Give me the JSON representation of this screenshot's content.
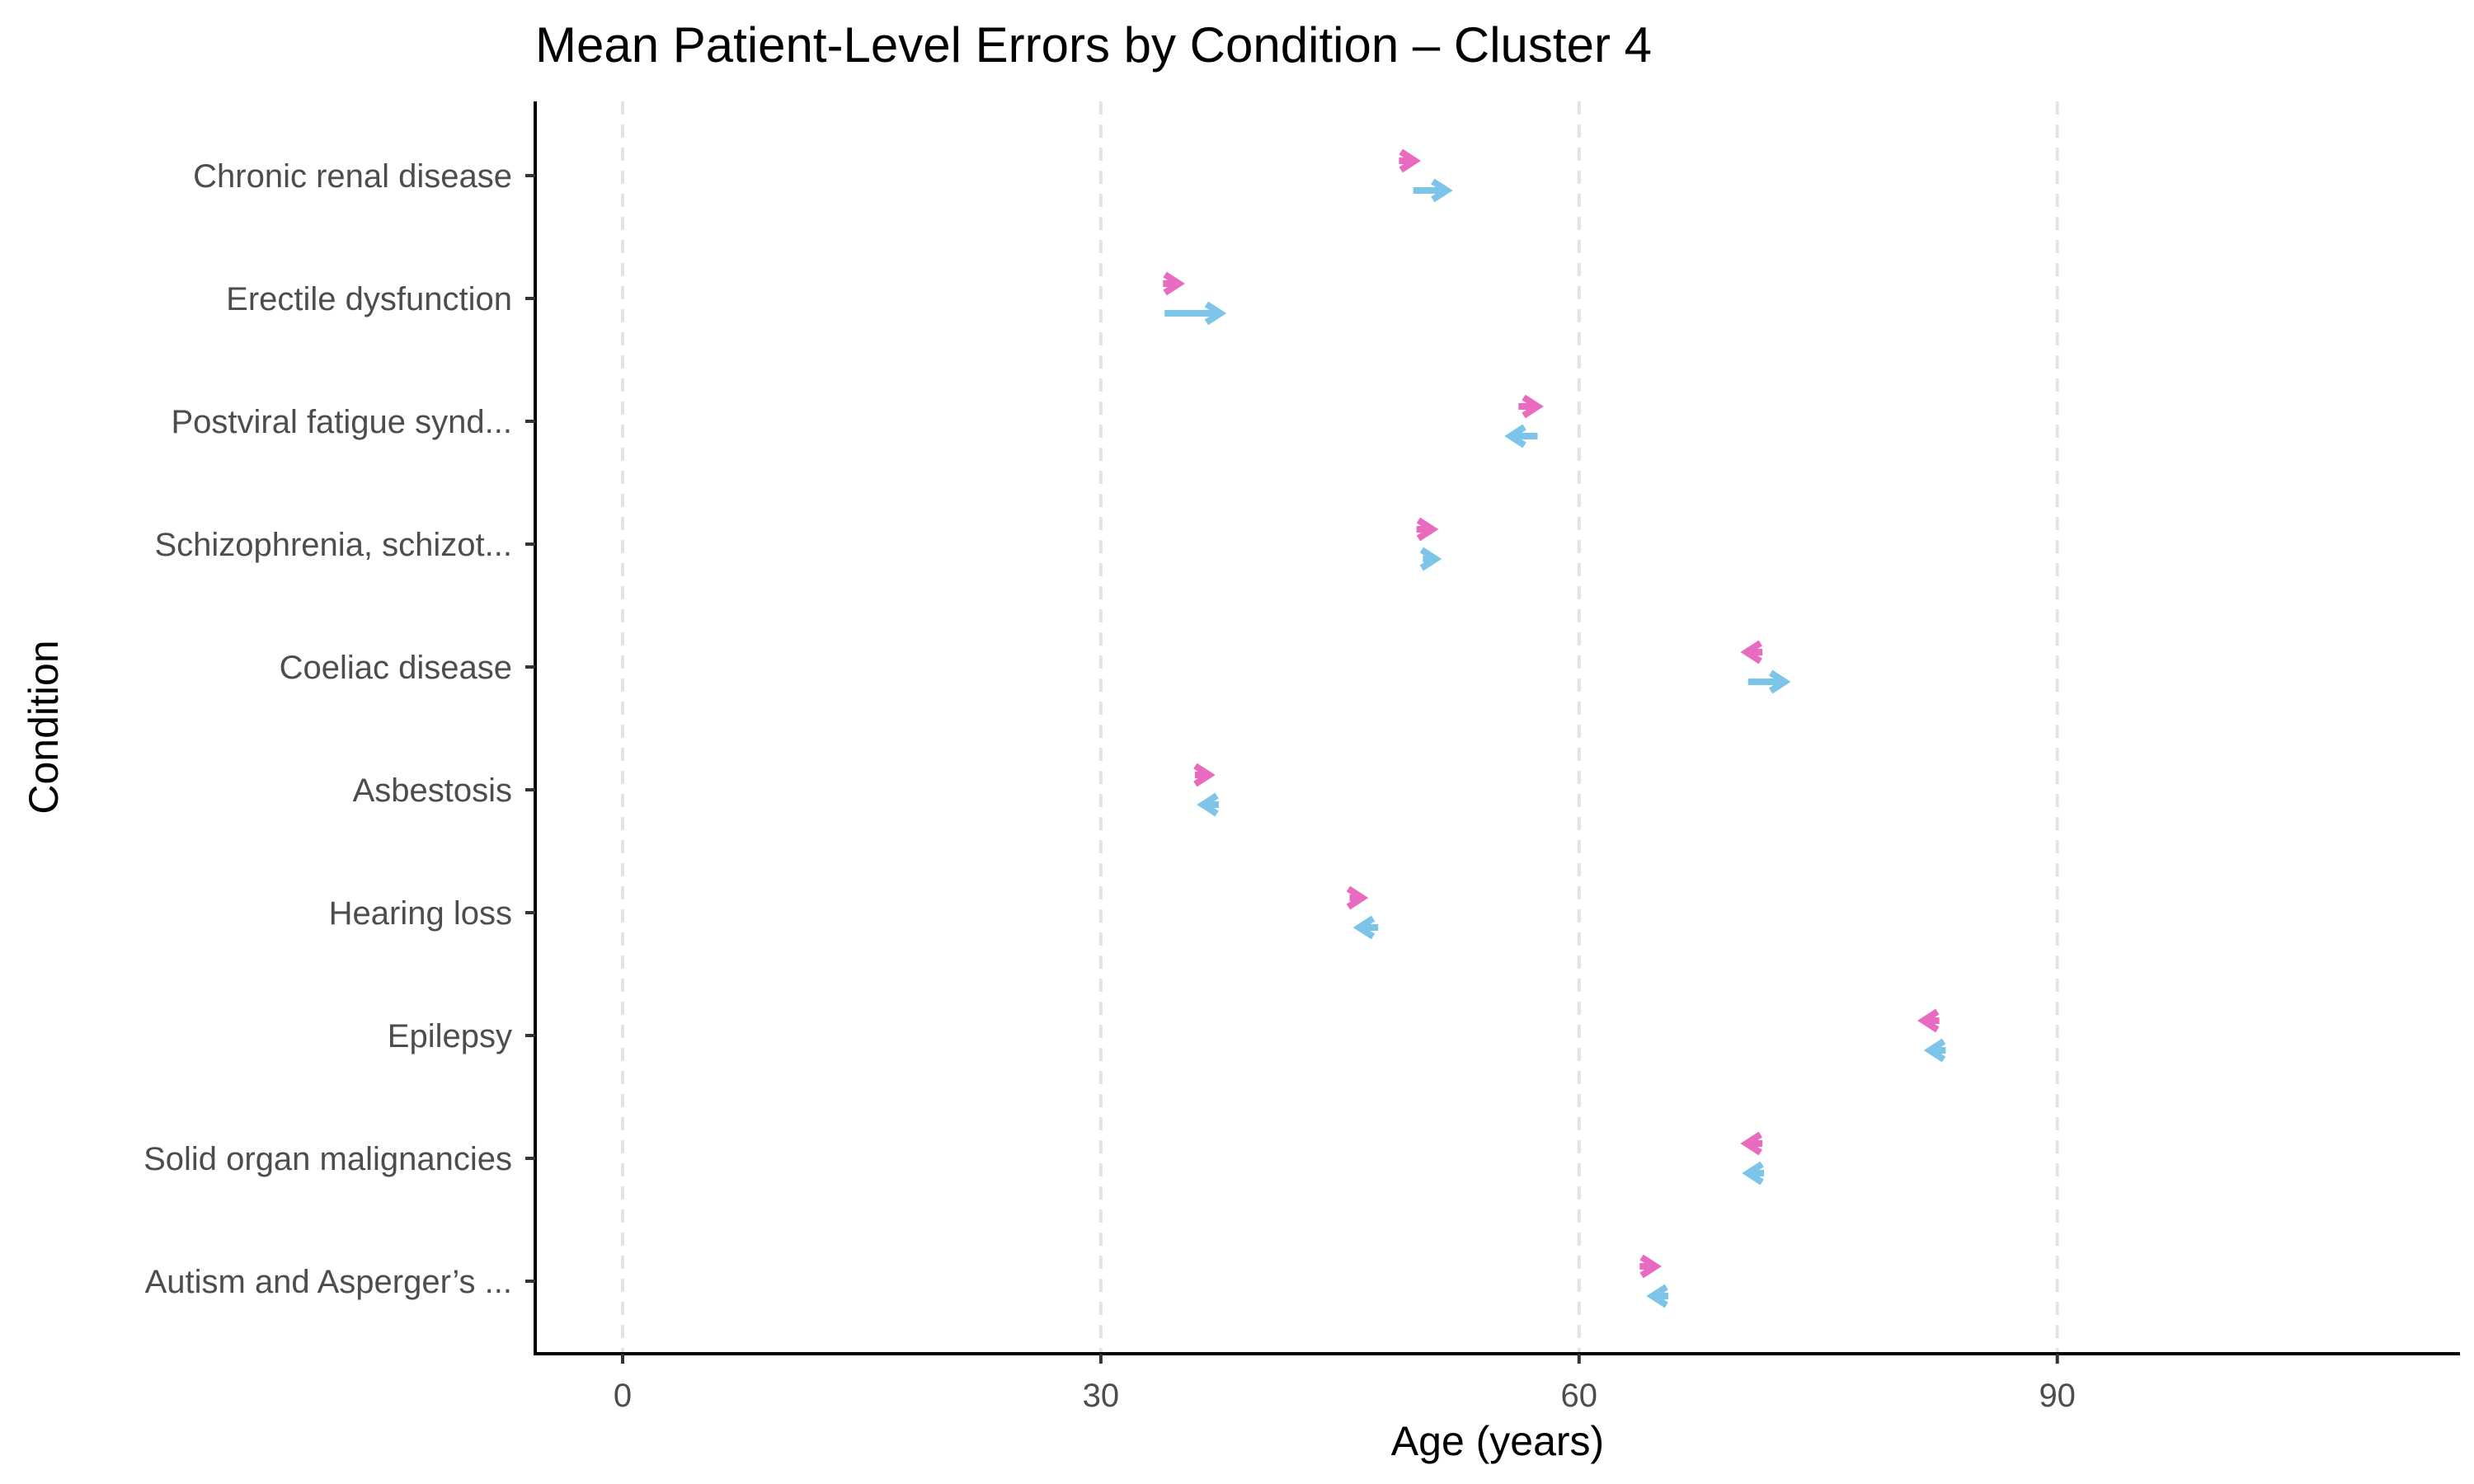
{
  "chart_data": {
    "type": "scatter",
    "title": "Mean Patient-Level Errors by Condition – Cluster 4",
    "xlabel": "Age (years)",
    "ylabel": "Condition",
    "xlim": [
      -5.5,
      115
    ],
    "x_ticks": [
      0,
      30,
      60,
      90
    ],
    "x_tick_labels": [
      "0",
      "30",
      "60",
      "90"
    ],
    "grid": "vertical dashed at x ticks",
    "legend": "none",
    "colors": {
      "pink": "#E86BBF",
      "blue": "#7CC4E8",
      "grid": "#e3e3e3",
      "axis": "#000000"
    },
    "categories": [
      "Chronic renal disease",
      "Erectile dysfunction",
      "Postviral fatigue synd...",
      "Schizophrenia, schizot...",
      "Coeliac disease",
      "Asbestosis",
      "Hearing loss",
      "Epilepsy",
      "Solid organ malignancies",
      "Autism and Asperger’s ..."
    ],
    "series": [
      {
        "color": "#E86BBF",
        "start": [
          48.7,
          33.9,
          56.2,
          49.8,
          71.5,
          35.9,
          45.6,
          82.6,
          71.5,
          63.8
        ],
        "end": [
          49.7,
          34.9,
          57.4,
          50.8,
          70.5,
          36.8,
          46.4,
          81.6,
          70.5,
          64.8
        ]
      },
      {
        "color": "#7CC4E8",
        "start": [
          49.6,
          34.0,
          57.4,
          50.2,
          70.6,
          37.4,
          47.4,
          83.0,
          71.6,
          65.6
        ],
        "end": [
          51.7,
          37.5,
          55.7,
          51.0,
          72.9,
          36.4,
          46.2,
          82.0,
          70.6,
          64.6
        ]
      }
    ]
  }
}
